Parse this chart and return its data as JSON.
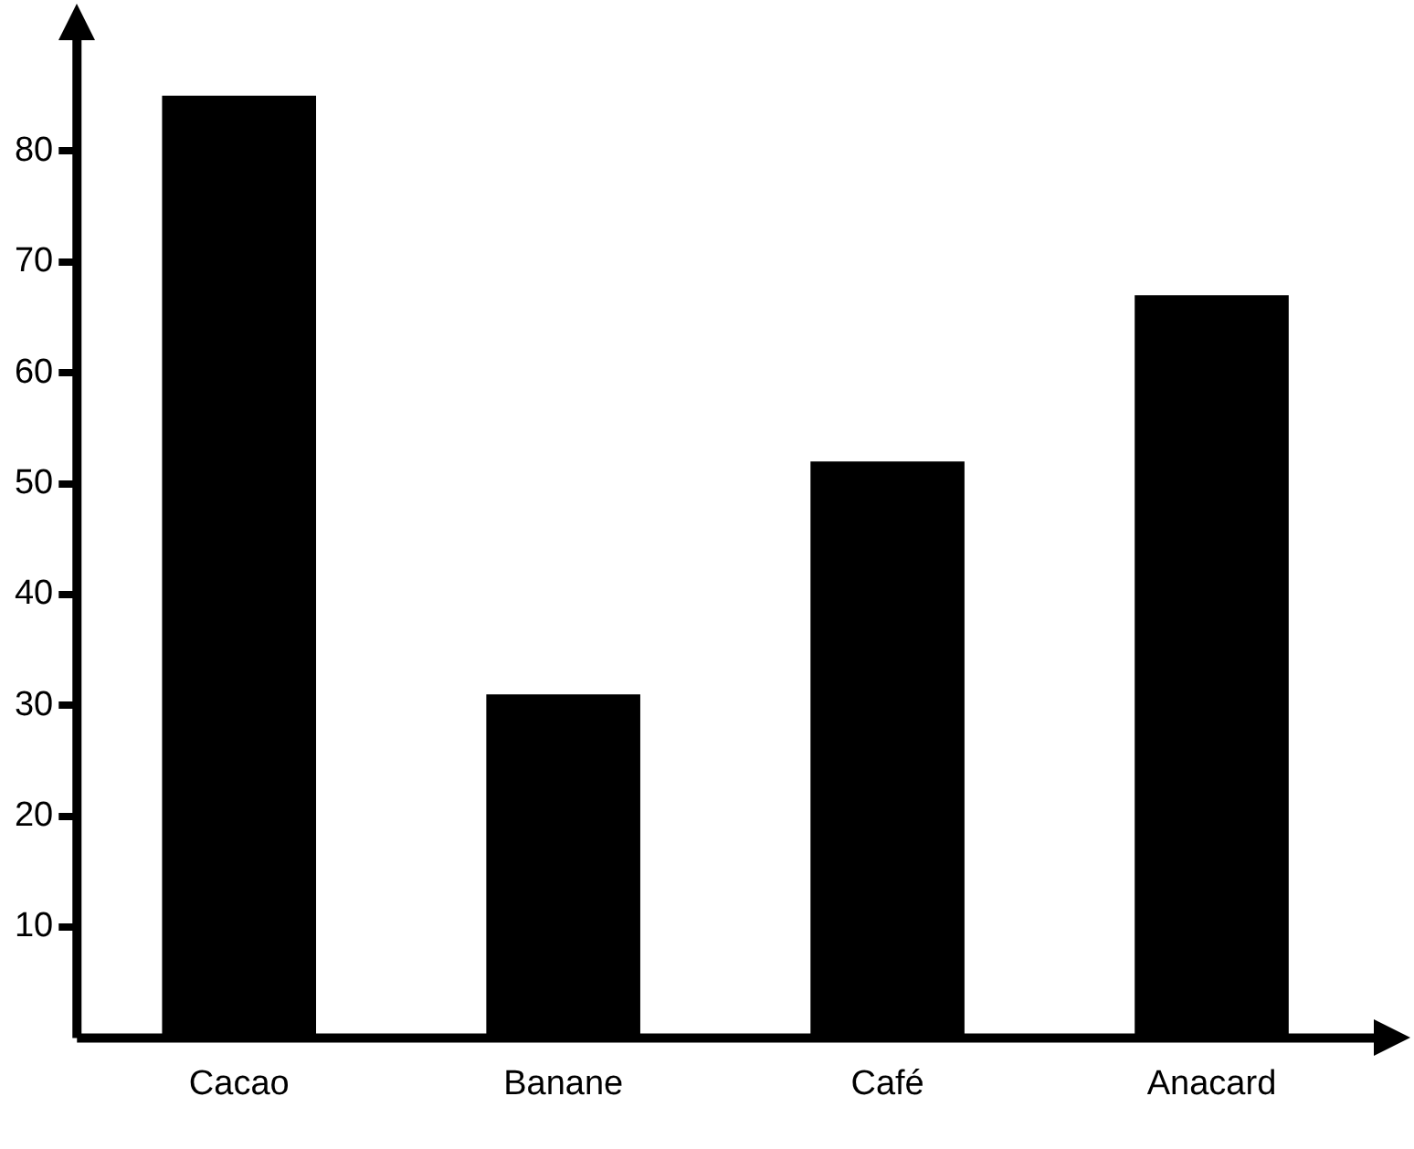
{
  "chart_data": {
    "type": "bar",
    "categories": [
      "Cacao",
      "Banane",
      "Café",
      "Anacard"
    ],
    "values": [
      85,
      31,
      52,
      67
    ],
    "color": "#000000",
    "ylim": [
      0,
      90
    ],
    "yticks": [
      10,
      20,
      30,
      40,
      50,
      60,
      70,
      80
    ],
    "grid": false
  }
}
